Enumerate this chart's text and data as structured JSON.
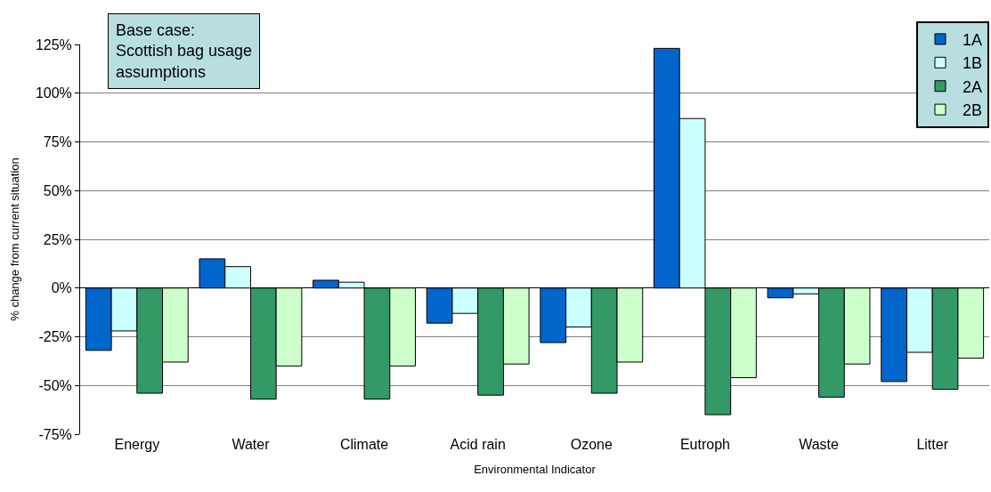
{
  "chart_data": {
    "type": "bar",
    "xlabel": "Environmental Indicator",
    "ylabel": "% change from current situation",
    "categories": [
      "Energy",
      "Water",
      "Climate",
      "Acid rain",
      "Ozone",
      "Eutroph",
      "Waste",
      "Litter"
    ],
    "series": [
      {
        "name": "1A",
        "color": "#0066cc",
        "values": [
          -32,
          15,
          4,
          -18,
          -28,
          123,
          -5,
          -48
        ]
      },
      {
        "name": "1B",
        "color": "#ccffff",
        "values": [
          -22,
          11,
          3,
          -13,
          -20,
          87,
          -3,
          -33
        ]
      },
      {
        "name": "2A",
        "color": "#339966",
        "values": [
          -54,
          -57,
          -57,
          -55,
          -54,
          -65,
          -56,
          -52
        ]
      },
      {
        "name": "2B",
        "color": "#ccffcc",
        "values": [
          -38,
          -40,
          -40,
          -39,
          -38,
          -46,
          -39,
          -36
        ]
      }
    ],
    "ylim": [
      -75,
      125
    ],
    "yticks": [
      {
        "value": -75,
        "label": "-75%"
      },
      {
        "value": -50,
        "label": "-50%"
      },
      {
        "value": -25,
        "label": "-25%"
      },
      {
        "value": 0,
        "label": "0%"
      },
      {
        "value": 25,
        "label": "25%"
      },
      {
        "value": 50,
        "label": "50%"
      },
      {
        "value": 75,
        "label": "75%"
      },
      {
        "value": 100,
        "label": "100%"
      },
      {
        "value": 125,
        "label": "125%"
      }
    ],
    "grid": "y",
    "legend": "top right",
    "annotations": [
      "Base case:\nScottish bag usage\nassumptions"
    ]
  }
}
